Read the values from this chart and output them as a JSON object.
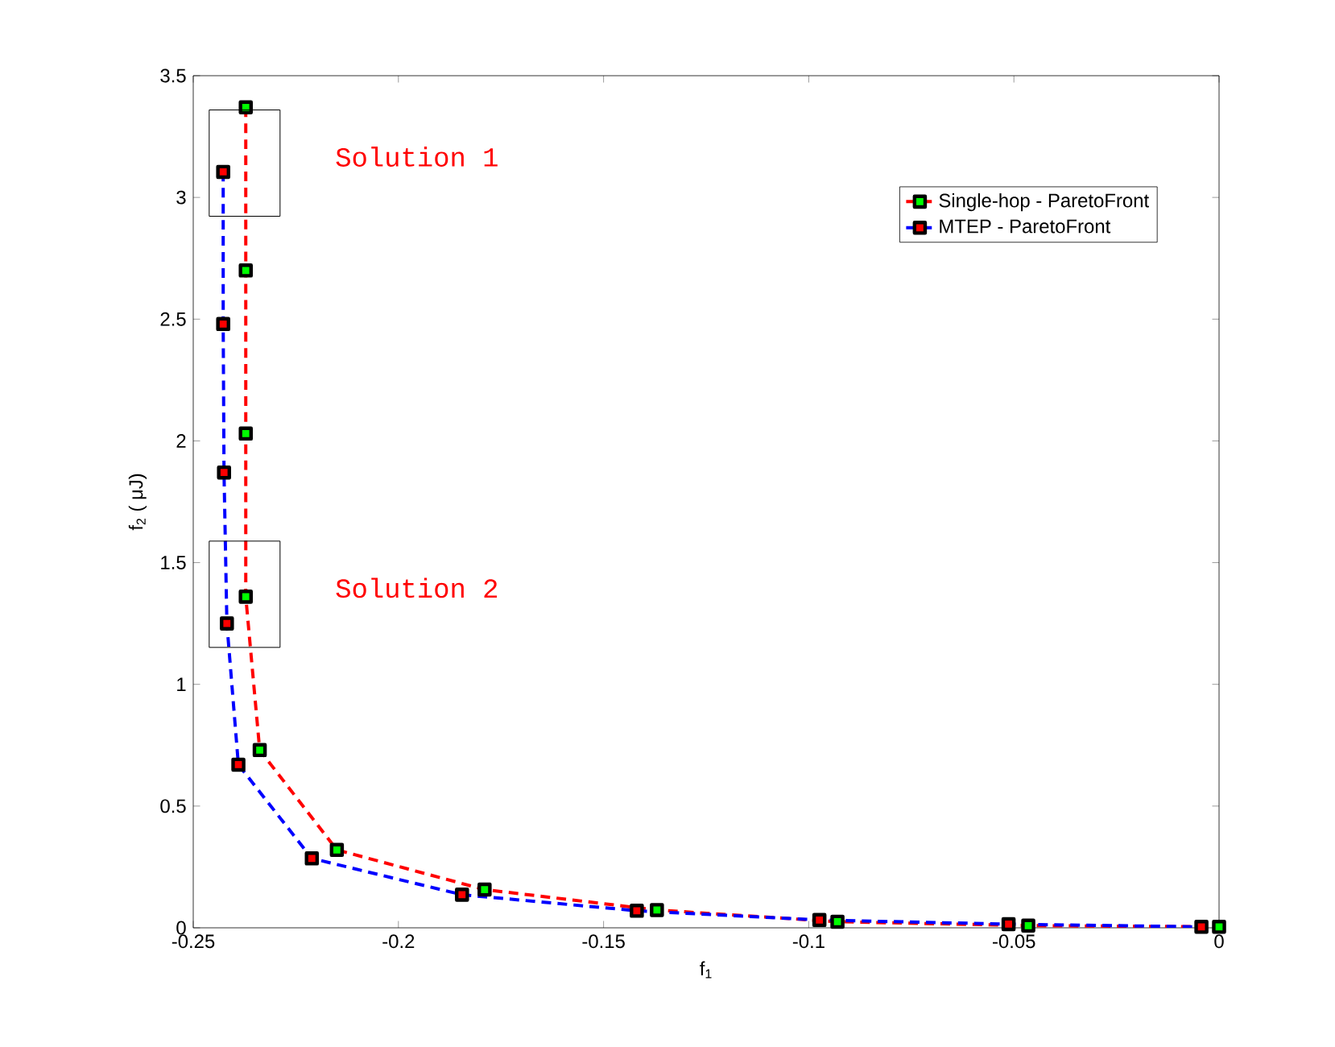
{
  "chart_data": {
    "type": "line",
    "xlabel": "f$_{1}$",
    "ylabel": "f$_{2}$ ( μJ)",
    "xlim": [
      -0.25,
      0
    ],
    "ylim": [
      0,
      3.5
    ],
    "xticks": [
      -0.25,
      -0.2,
      -0.15,
      -0.1,
      -0.05,
      0
    ],
    "yticks": [
      0,
      0.5,
      1,
      1.5,
      2,
      2.5,
      3,
      3.5
    ],
    "grid": false,
    "legend": "top right",
    "marker": "square",
    "line_style": "dashed",
    "annotations": [
      "Solution 1",
      "Solution 2"
    ],
    "series": [
      {
        "name": "Single-hop  -  ParetoFront",
        "color": "#ff0000",
        "x": [
          -0.2372,
          -0.2372,
          -0.2372,
          -0.2372,
          -0.2338,
          -0.215,
          -0.179,
          -0.137,
          -0.093,
          -0.0465,
          0.0
        ],
        "values": [
          3.37,
          2.7,
          2.03,
          1.36,
          0.73,
          0.32,
          0.157,
          0.073,
          0.025,
          0.009,
          0.004
        ],
        "colors": [
          "#00ff00",
          "#00ff00",
          "#00ff00",
          "#00ff00",
          "#00ff00",
          "#00ff00",
          "#00ff00",
          "#00ff00",
          "#00ff00",
          "#00ff00",
          "#00ff00"
        ]
      },
      {
        "name": "MTEP    -  ParetoFront",
        "color": "#0000ff",
        "x": [
          -0.2427,
          -0.2427,
          -0.2425,
          -0.2418,
          -0.239,
          -0.2211,
          -0.1845,
          -0.1419,
          -0.0974,
          -0.0513,
          -0.0043
        ],
        "values": [
          3.105,
          2.48,
          1.87,
          1.25,
          0.67,
          0.285,
          0.136,
          0.07,
          0.032,
          0.015,
          0.004
        ],
        "colors": [
          "#ff0000",
          "#ff0000",
          "#ff0000",
          "#ff0000",
          "#ff0000",
          "#ff0000",
          "#ff0000",
          "#ff0000",
          "#ff0000",
          "#ff0000",
          "#ff0000"
        ]
      }
    ]
  }
}
